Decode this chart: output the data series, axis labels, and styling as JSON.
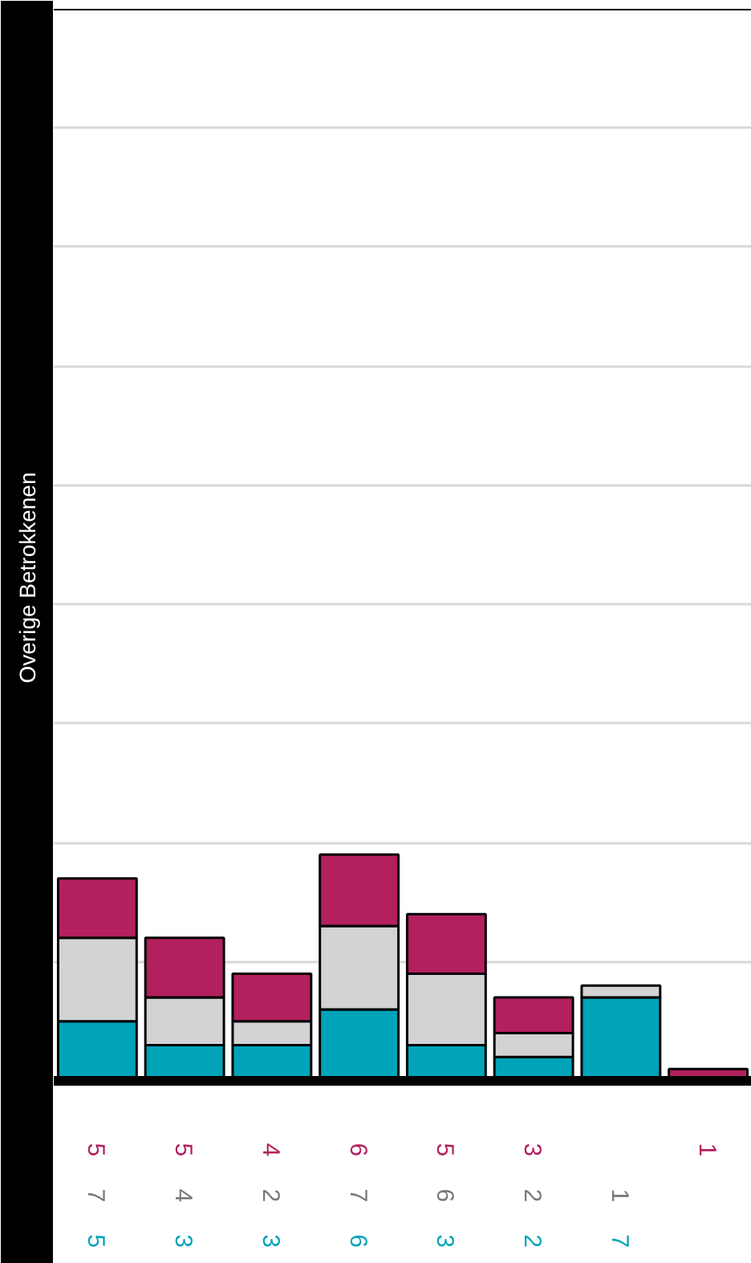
{
  "chart_data": {
    "type": "bar",
    "stacked": true,
    "ylabel": "Overige Betrokkenen",
    "categories": [
      null,
      null,
      null,
      null,
      null,
      null,
      null,
      null
    ],
    "series": [
      {
        "color": "#00a3b8",
        "values": [
          5,
          3,
          3,
          6,
          3,
          2,
          7,
          null
        ]
      },
      {
        "color": "#d3d3d5",
        "values": [
          7,
          4,
          2,
          7,
          6,
          2,
          1,
          null
        ]
      },
      {
        "color": "#b3205e",
        "values": [
          5,
          5,
          4,
          6,
          5,
          3,
          null,
          1
        ]
      }
    ],
    "ylim": [
      0,
      90
    ],
    "yticks": [
      {
        "value": 0,
        "label": null
      },
      {
        "value": 10,
        "label": null
      },
      {
        "value": 20,
        "label": null
      },
      {
        "value": 30,
        "label": null
      },
      {
        "value": 40,
        "label": null
      },
      {
        "value": 50,
        "label": null
      },
      {
        "value": 60,
        "label": null
      },
      {
        "value": 70,
        "label": null
      },
      {
        "value": 80,
        "label": null
      },
      {
        "value": 90,
        "label": null
      }
    ],
    "grid": "y",
    "tick_labels": false,
    "data_labels": true
  }
}
